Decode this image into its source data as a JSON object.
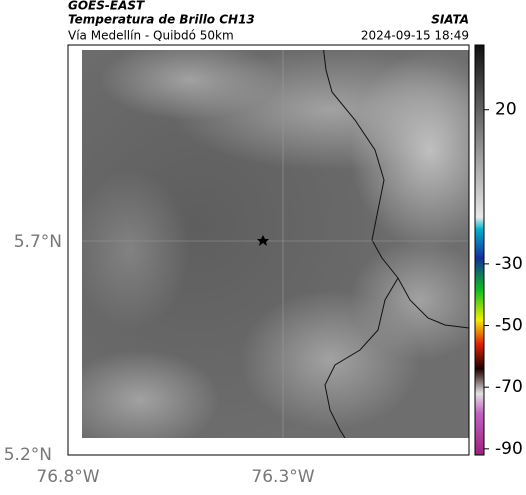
{
  "header": {
    "satellite": "GOES-EAST",
    "product": "Temperatura de Brillo CH13",
    "region": "Vía Medellín - Quibdó 50km",
    "source": "SIATA",
    "timestamp": "2024-09-15 18:49"
  },
  "map": {
    "lat_labels": [
      "5.7°N",
      "5.2°N"
    ],
    "lon_labels": [
      "76.8°W",
      "76.3°W"
    ]
  },
  "colorbar": {
    "range": [
      -92,
      41
    ],
    "ticks": [
      20,
      -30,
      -50,
      -70,
      -90
    ]
  }
}
